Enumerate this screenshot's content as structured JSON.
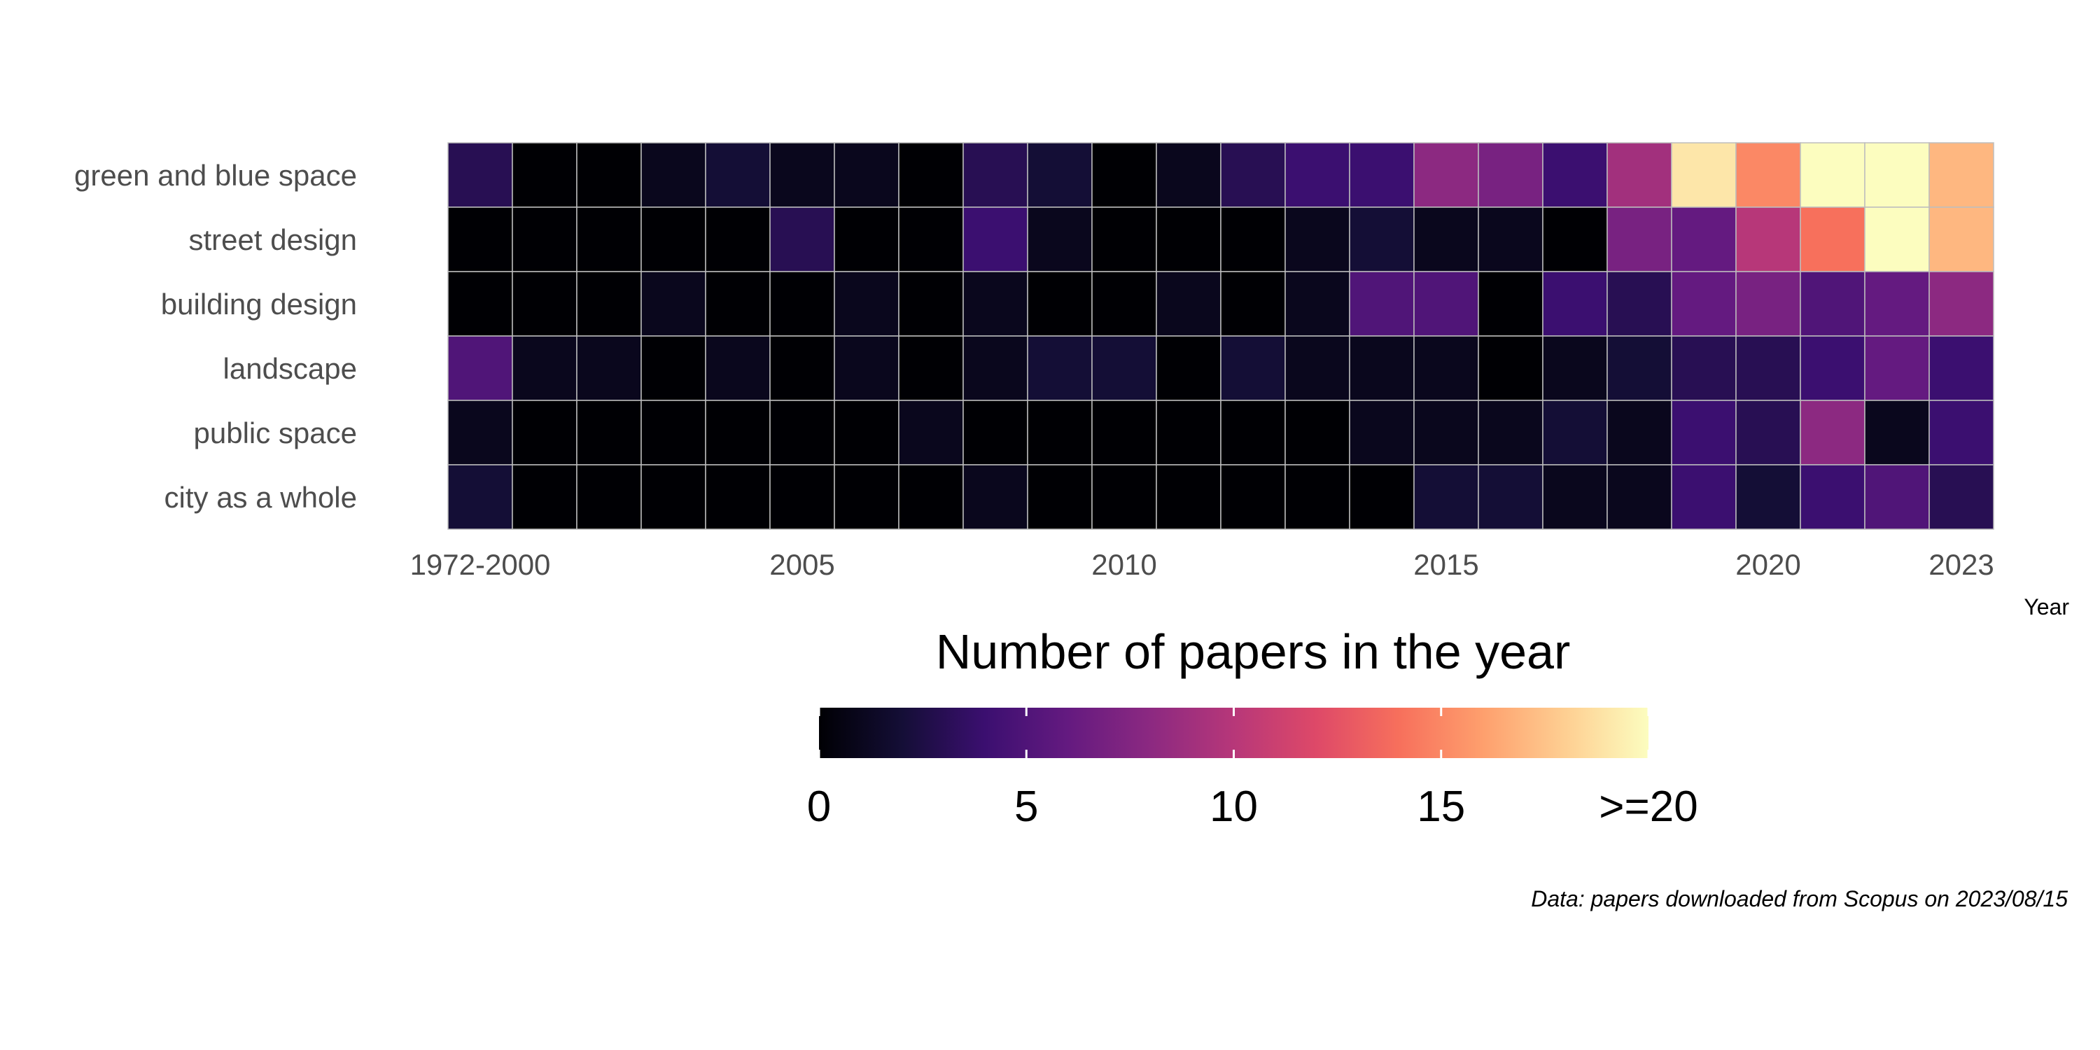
{
  "chart_data": {
    "type": "heatmap",
    "title": "",
    "xlabel": "Year",
    "ylabel": "",
    "x": [
      "1972-2000",
      "2001",
      "2002",
      "2003",
      "2004",
      "2005",
      "2006",
      "2007",
      "2008",
      "2009",
      "2010",
      "2011",
      "2012",
      "2013",
      "2014",
      "2015",
      "2016",
      "2017",
      "2018",
      "2019",
      "2020",
      "2021",
      "2022",
      "2023"
    ],
    "x_tick_labels": [
      {
        "x": "1972-2000",
        "label": "1972-2000"
      },
      {
        "x": "2005",
        "label": "2005"
      },
      {
        "x": "2010",
        "label": "2010"
      },
      {
        "x": "2015",
        "label": "2015"
      },
      {
        "x": "2020",
        "label": "2020"
      },
      {
        "x": "2023",
        "label": "2023"
      }
    ],
    "y": [
      "green and blue space",
      "street design",
      "building design",
      "landscape",
      "public space",
      "city as a whole"
    ],
    "values": [
      [
        3,
        0,
        0,
        1,
        2,
        1,
        1,
        0,
        3,
        2,
        0,
        1,
        3,
        4,
        4,
        8,
        7,
        4,
        9,
        19,
        15,
        20,
        20,
        17
      ],
      [
        0,
        0,
        0,
        0,
        0,
        3,
        0,
        0,
        4,
        1,
        0,
        0,
        0,
        1,
        2,
        1,
        1,
        0,
        7,
        6,
        10,
        14,
        20,
        17
      ],
      [
        0,
        0,
        0,
        1,
        0,
        0,
        1,
        0,
        1,
        0,
        0,
        1,
        0,
        1,
        5,
        5,
        0,
        4,
        3,
        6,
        7,
        5,
        6,
        8
      ],
      [
        5,
        1,
        1,
        0,
        1,
        0,
        1,
        0,
        1,
        2,
        2,
        0,
        2,
        1,
        1,
        1,
        0,
        1,
        2,
        3,
        3,
        4,
        6,
        4
      ],
      [
        1,
        0,
        0,
        0,
        0,
        0,
        0,
        1,
        0,
        0,
        0,
        0,
        0,
        0,
        1,
        1,
        1,
        2,
        1,
        4,
        3,
        8,
        1,
        4
      ],
      [
        2,
        0,
        0,
        0,
        0,
        0,
        0,
        0,
        1,
        0,
        0,
        0,
        0,
        0,
        0,
        2,
        2,
        1,
        1,
        4,
        2,
        4,
        5,
        3
      ]
    ],
    "value_range": [
      0,
      20
    ],
    "colorscale": "magma",
    "grid": false,
    "legend": {
      "title": "Number of papers in the year",
      "ticks": [
        0,
        5,
        10,
        15,
        20
      ],
      "tick_labels": [
        "0",
        "5",
        "10",
        "15",
        ">=20"
      ],
      "placement": "bottom"
    },
    "caption": "Data: papers downloaded from Scopus on 2023/08/15"
  }
}
